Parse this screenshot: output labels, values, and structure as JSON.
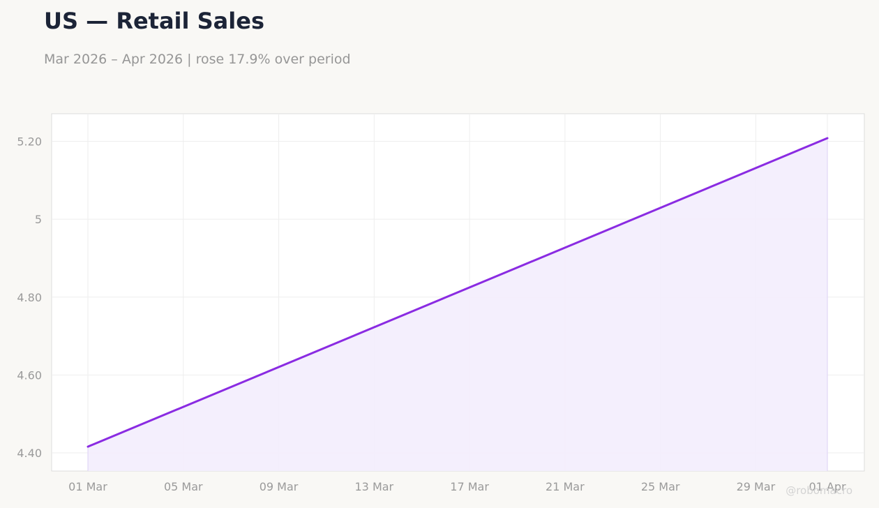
{
  "header": {
    "title": "US — Retail Sales",
    "subtitle": "Mar 2026 – Apr 2026 | rose 17.9% over period"
  },
  "watermark": "@robomacro",
  "colors": {
    "line": "#8a2be2",
    "fill": "#f3edfd",
    "grid": "#eeeeee",
    "frame": "#dcdcdc",
    "background": "#f9f8f5",
    "plot_background": "#ffffff"
  },
  "chart_data": {
    "type": "area",
    "title": "US — Retail Sales",
    "subtitle": "Mar 2026 – Apr 2026 | rose 17.9% over period",
    "xlabel": "",
    "ylabel": "",
    "grid": true,
    "legend": "none",
    "x_range": [
      "2026-03-01",
      "2026-04-01"
    ],
    "ylim": [
      4.35,
      5.27
    ],
    "x_ticks": [
      {
        "date": "2026-03-01",
        "label": "01 Mar"
      },
      {
        "date": "2026-03-05",
        "label": "05 Mar"
      },
      {
        "date": "2026-03-09",
        "label": "09 Mar"
      },
      {
        "date": "2026-03-13",
        "label": "13 Mar"
      },
      {
        "date": "2026-03-17",
        "label": "17 Mar"
      },
      {
        "date": "2026-03-21",
        "label": "21 Mar"
      },
      {
        "date": "2026-03-25",
        "label": "25 Mar"
      },
      {
        "date": "2026-03-29",
        "label": "29 Mar"
      },
      {
        "date": "2026-04-01",
        "label": "01 Apr"
      }
    ],
    "y_ticks": [
      {
        "value": 4.4,
        "label": "4.40"
      },
      {
        "value": 4.6,
        "label": "4.60"
      },
      {
        "value": 4.8,
        "label": "4.80"
      },
      {
        "value": 5.0,
        "label": "5"
      },
      {
        "value": 5.2,
        "label": "5.20"
      }
    ],
    "series": [
      {
        "x": [
          "2026-03-01",
          "2026-04-01"
        ],
        "y": [
          4.416,
          5.208
        ]
      }
    ]
  }
}
